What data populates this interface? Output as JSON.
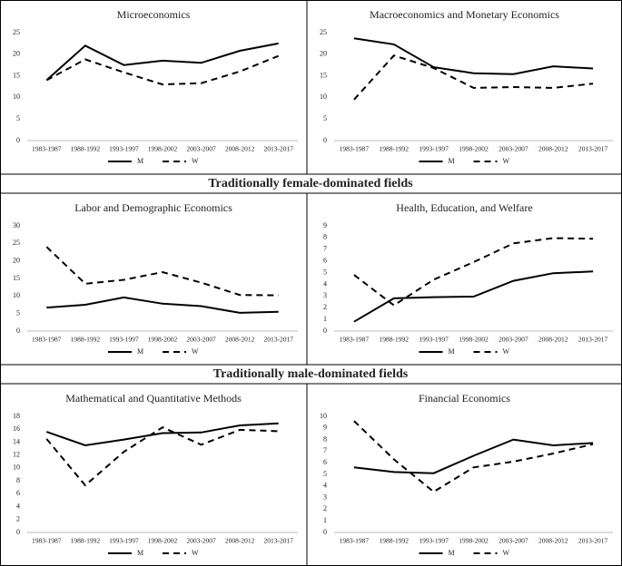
{
  "sections": [
    "Traditionally female-dominated fields",
    "Traditionally male-dominated fields"
  ],
  "chart_data": [
    {
      "type": "line",
      "title": "Microeconomics",
      "categories": [
        "1983-1987",
        "1988-1992",
        "1993-1997",
        "1998-2002",
        "2003-2007",
        "2008-2012",
        "2013-2017"
      ],
      "ylim": [
        0,
        25
      ],
      "yticks": [
        0,
        5,
        10,
        15,
        20,
        25
      ],
      "series": [
        {
          "name": "M",
          "color": "#000000",
          "dash": "solid",
          "values": [
            14,
            22,
            17.5,
            18.5,
            18,
            20.8,
            22.5
          ]
        },
        {
          "name": "W",
          "color": "#000000",
          "dash": "dashed",
          "values": [
            14,
            18.8,
            15.8,
            13,
            13.3,
            16,
            19.6
          ]
        }
      ]
    },
    {
      "type": "line",
      "title": "Macroeconomics and Monetary Economics",
      "categories": [
        "1983-1987",
        "1988-1992",
        "1993-1997",
        "1998-2002",
        "2003-2007",
        "2008-2012",
        "2013-2017"
      ],
      "ylim": [
        0,
        25
      ],
      "yticks": [
        0,
        5,
        10,
        15,
        20,
        25
      ],
      "series": [
        {
          "name": "M",
          "color": "#000000",
          "dash": "solid",
          "values": [
            23.7,
            22.3,
            17,
            15.6,
            15.4,
            17.2,
            16.7
          ]
        },
        {
          "name": "W",
          "color": "#000000",
          "dash": "dashed",
          "values": [
            9.5,
            19.7,
            16.8,
            12.2,
            12.4,
            12.2,
            13.2
          ]
        }
      ]
    },
    {
      "type": "line",
      "title": "Labor and Demographic Economics",
      "categories": [
        "1983-1987",
        "1988-1992",
        "1993-1997",
        "1998-2002",
        "2003-2007",
        "2008-2012",
        "2013-2017"
      ],
      "ylim": [
        0,
        30
      ],
      "yticks": [
        0,
        5,
        10,
        15,
        20,
        25,
        30
      ],
      "series": [
        {
          "name": "M",
          "color": "#000000",
          "dash": "solid",
          "values": [
            6.7,
            7.5,
            9.6,
            7.8,
            7.1,
            5.2,
            5.5
          ]
        },
        {
          "name": "W",
          "color": "#000000",
          "dash": "dashed",
          "values": [
            24,
            13.5,
            14.6,
            16.8,
            13.8,
            10.3,
            10.2
          ]
        }
      ]
    },
    {
      "type": "line",
      "title": "Health, Education, and Welfare",
      "categories": [
        "1983-1987",
        "1988-1992",
        "1993-1997",
        "1998-2002",
        "2003-2007",
        "2008-2012",
        "2013-2017"
      ],
      "ylim": [
        0,
        9
      ],
      "yticks": [
        0,
        1,
        2,
        3,
        4,
        5,
        6,
        7,
        8,
        9
      ],
      "series": [
        {
          "name": "M",
          "color": "#000000",
          "dash": "solid",
          "values": [
            0.8,
            2.8,
            2.9,
            2.95,
            4.3,
            4.95,
            5.1
          ]
        },
        {
          "name": "W",
          "color": "#000000",
          "dash": "dashed",
          "values": [
            4.8,
            2.2,
            4.4,
            5.9,
            7.5,
            7.95,
            7.9
          ]
        }
      ]
    },
    {
      "type": "line",
      "title": "Mathematical and Quantitative Methods",
      "categories": [
        "1983-1987",
        "1988-1992",
        "1993-1997",
        "1998-2002",
        "2003-2007",
        "2008-2012",
        "2013-2017"
      ],
      "ylim": [
        0,
        18
      ],
      "yticks": [
        0,
        2,
        4,
        6,
        8,
        10,
        12,
        14,
        16,
        18
      ],
      "series": [
        {
          "name": "M",
          "color": "#000000",
          "dash": "solid",
          "values": [
            15.6,
            13.5,
            14.4,
            15.4,
            15.5,
            16.6,
            16.9
          ]
        },
        {
          "name": "W",
          "color": "#000000",
          "dash": "dashed",
          "values": [
            14.5,
            7.3,
            12.5,
            16.3,
            13.6,
            15.9,
            15.7
          ]
        }
      ]
    },
    {
      "type": "line",
      "title": "Financial Economics",
      "categories": [
        "1983-1987",
        "1988-1992",
        "1993-1997",
        "1998-2002",
        "2003-2007",
        "2008-2012",
        "2013-2017"
      ],
      "ylim": [
        0,
        10
      ],
      "yticks": [
        0,
        1,
        2,
        3,
        4,
        5,
        6,
        7,
        8,
        9,
        10
      ],
      "series": [
        {
          "name": "M",
          "color": "#000000",
          "dash": "solid",
          "values": [
            5.6,
            5.2,
            5.1,
            6.6,
            8,
            7.5,
            7.7
          ]
        },
        {
          "name": "W",
          "color": "#000000",
          "dash": "dashed",
          "values": [
            9.6,
            6.3,
            3.5,
            5.6,
            6.1,
            6.8,
            7.6
          ]
        }
      ]
    }
  ]
}
